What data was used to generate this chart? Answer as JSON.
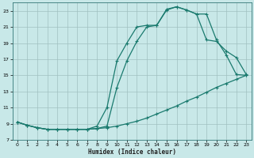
{
  "xlabel": "Humidex (Indice chaleur)",
  "bg_color": "#c8e8e8",
  "line_color": "#1a7a6e",
  "grid_color": "#a0c0c0",
  "xlim": [
    -0.5,
    23.5
  ],
  "ylim": [
    7,
    24
  ],
  "yticks": [
    7,
    9,
    11,
    13,
    15,
    17,
    19,
    21,
    23
  ],
  "xticks": [
    0,
    1,
    2,
    3,
    4,
    5,
    6,
    7,
    8,
    9,
    10,
    11,
    12,
    13,
    14,
    15,
    16,
    17,
    18,
    19,
    20,
    21,
    22,
    23
  ],
  "curve1_x": [
    0,
    1,
    2,
    3,
    4,
    5,
    6,
    7,
    8,
    9,
    10,
    11,
    12,
    13,
    14,
    15,
    16,
    17,
    18,
    19,
    20,
    21,
    22,
    23
  ],
  "curve1_y": [
    9.2,
    8.8,
    8.5,
    8.3,
    8.3,
    8.3,
    8.3,
    8.3,
    8.4,
    8.5,
    8.7,
    9.0,
    9.3,
    9.7,
    10.2,
    10.7,
    11.2,
    11.8,
    12.3,
    12.9,
    13.5,
    14.0,
    14.5,
    15.0
  ],
  "curve2_x": [
    0,
    1,
    2,
    3,
    4,
    5,
    6,
    7,
    8,
    9,
    10,
    11,
    12,
    13,
    14,
    15,
    16,
    17,
    18,
    19,
    20,
    21,
    22,
    23
  ],
  "curve2_y": [
    9.2,
    8.8,
    8.5,
    8.3,
    8.3,
    8.3,
    8.3,
    8.3,
    8.7,
    11.0,
    16.8,
    19.0,
    21.0,
    21.2,
    21.2,
    23.1,
    23.5,
    23.1,
    22.6,
    19.4,
    19.2,
    18.0,
    17.2,
    15.1
  ],
  "curve3_x": [
    0,
    1,
    2,
    3,
    4,
    5,
    6,
    7,
    8,
    9,
    10,
    11,
    12,
    13,
    14,
    15,
    16,
    17,
    18,
    19,
    20,
    21,
    22,
    23
  ],
  "curve3_y": [
    9.2,
    8.8,
    8.5,
    8.3,
    8.3,
    8.3,
    8.3,
    8.3,
    8.4,
    8.7,
    13.5,
    16.8,
    19.2,
    21.0,
    21.2,
    23.2,
    23.5,
    23.1,
    22.6,
    22.6,
    19.4,
    17.5,
    15.1,
    15.0
  ]
}
